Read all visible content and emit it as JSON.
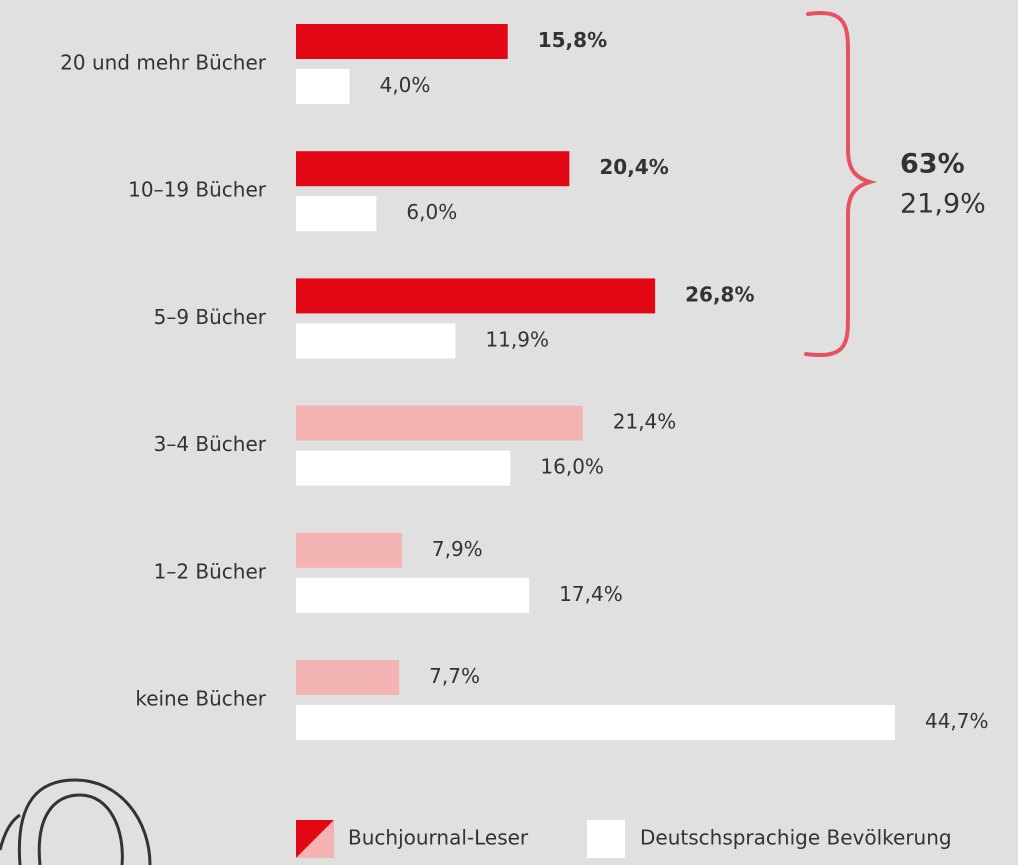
{
  "chart_data": {
    "type": "hbar",
    "categories": [
      "20 und mehr Bücher",
      "10–19 Bücher",
      "5–9 Bücher",
      "3–4 Bücher",
      "1–2 Bücher",
      "keine Bücher"
    ],
    "series": [
      {
        "name": "Buchjournal-Leser",
        "colors": [
          "#e30613",
          "#e30613",
          "#e30613",
          "#f4b3b3",
          "#f4b3b3",
          "#f4b3b3"
        ],
        "values": [
          15.8,
          20.4,
          26.8,
          21.4,
          7.9,
          7.7
        ],
        "value_labels": [
          "15,8%",
          "20,4%",
          "26,8%",
          "21,4%",
          "7,9%",
          "7,7%"
        ]
      },
      {
        "name": "Deutschsprachige Bevölkerung",
        "color": "#ffffff",
        "values": [
          4.0,
          6.0,
          11.9,
          16.0,
          17.4,
          44.7
        ],
        "value_labels": [
          "4,0%",
          "6,0%",
          "11,9%",
          "16,0%",
          "17,4%",
          "44,7%"
        ]
      }
    ],
    "annotations": [
      {
        "label": "63%",
        "color": "#e30613"
      },
      {
        "label": "21,9%",
        "color": "#333333"
      }
    ],
    "brace_color": "#e8515f"
  }
}
